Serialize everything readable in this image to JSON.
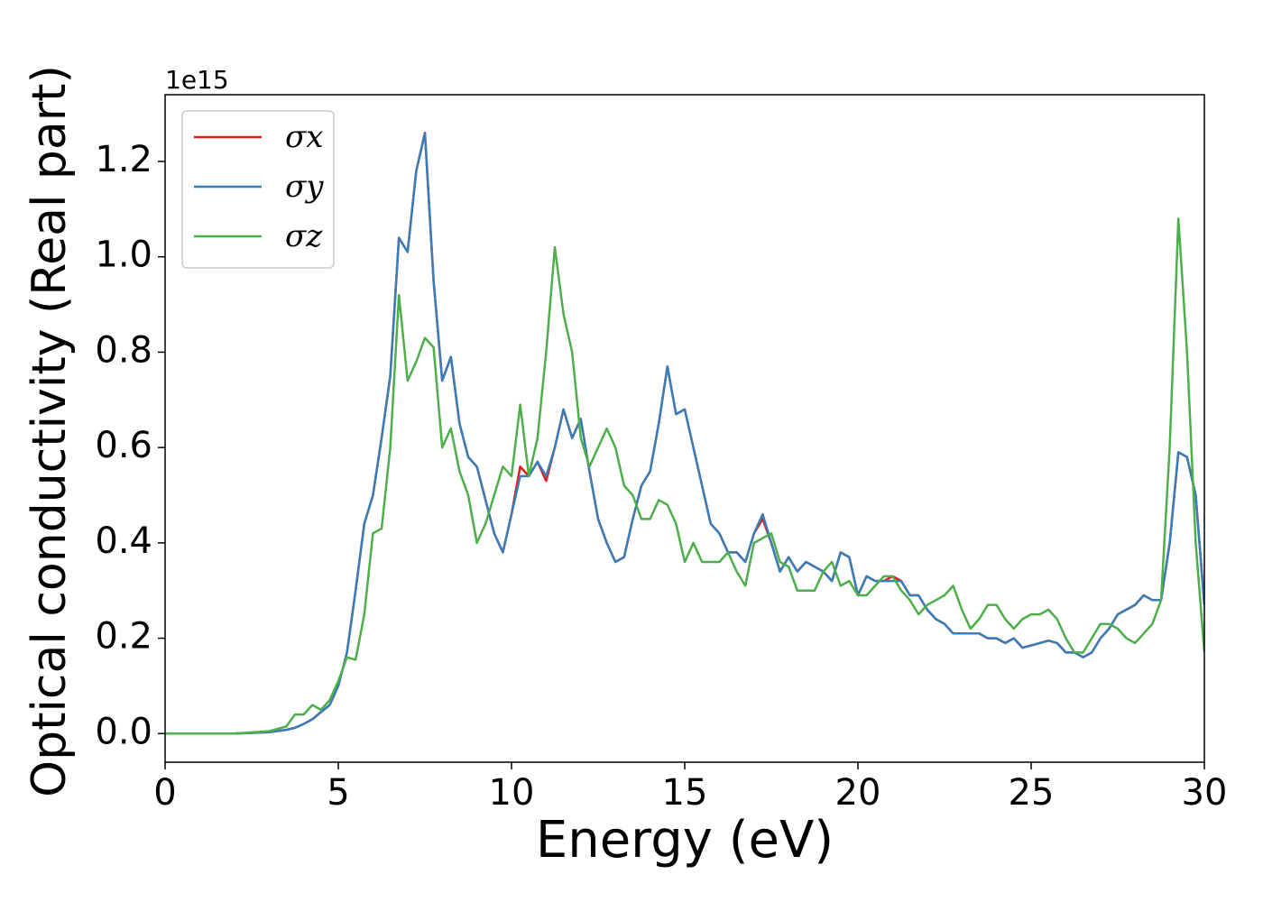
{
  "chart_data": {
    "type": "line",
    "xlabel": "Energy (eV)",
    "ylabel": "Optical conductivity (Real part)",
    "y_multiplier": "1e15",
    "x": [
      0,
      1,
      2,
      3,
      3.5,
      3.75,
      4,
      4.25,
      4.5,
      4.75,
      5,
      5.25,
      5.5,
      5.75,
      6,
      6.25,
      6.5,
      6.75,
      7,
      7.25,
      7.5,
      7.75,
      8,
      8.25,
      8.5,
      8.75,
      9,
      9.25,
      9.5,
      9.75,
      10,
      10.25,
      10.5,
      10.75,
      11,
      11.25,
      11.5,
      11.75,
      12,
      12.25,
      12.5,
      12.75,
      13,
      13.25,
      13.5,
      13.75,
      14,
      14.25,
      14.5,
      14.75,
      15,
      15.25,
      15.5,
      15.75,
      16,
      16.25,
      16.5,
      16.75,
      17,
      17.25,
      17.5,
      17.75,
      18,
      18.25,
      18.5,
      18.75,
      19,
      19.25,
      19.5,
      19.75,
      20,
      20.25,
      20.5,
      20.75,
      21,
      21.25,
      21.5,
      21.75,
      22,
      22.25,
      22.5,
      22.75,
      23,
      23.25,
      23.5,
      23.75,
      24,
      24.25,
      24.5,
      24.75,
      25,
      25.25,
      25.5,
      25.75,
      26,
      26.25,
      26.5,
      26.75,
      27,
      27.25,
      27.5,
      27.75,
      28,
      28.25,
      28.5,
      28.75,
      29,
      29.25,
      29.5,
      29.75,
      30
    ],
    "series": [
      {
        "name": "σx",
        "color": "#e41a1c",
        "values": [
          0,
          0,
          0,
          0.003,
          0.008,
          0.012,
          0.02,
          0.03,
          0.045,
          0.06,
          0.1,
          0.17,
          0.3,
          0.44,
          0.5,
          0.62,
          0.75,
          1.04,
          1.01,
          1.18,
          1.26,
          0.95,
          0.74,
          0.79,
          0.65,
          0.58,
          0.56,
          0.49,
          0.42,
          0.38,
          0.46,
          0.56,
          0.54,
          0.57,
          0.53,
          0.6,
          0.68,
          0.62,
          0.66,
          0.55,
          0.45,
          0.4,
          0.36,
          0.37,
          0.45,
          0.52,
          0.55,
          0.65,
          0.77,
          0.67,
          0.68,
          0.6,
          0.52,
          0.44,
          0.42,
          0.38,
          0.38,
          0.36,
          0.42,
          0.45,
          0.4,
          0.34,
          0.37,
          0.34,
          0.36,
          0.35,
          0.34,
          0.32,
          0.38,
          0.37,
          0.29,
          0.33,
          0.32,
          0.32,
          0.33,
          0.32,
          0.29,
          0.29,
          0.26,
          0.24,
          0.23,
          0.21,
          0.21,
          0.21,
          0.21,
          0.2,
          0.2,
          0.19,
          0.2,
          0.18,
          0.185,
          0.19,
          0.195,
          0.19,
          0.17,
          0.17,
          0.16,
          0.17,
          0.2,
          0.22,
          0.25,
          0.26,
          0.27,
          0.29,
          0.28,
          0.28,
          0.4,
          0.59,
          0.58,
          0.5,
          0.27
        ]
      },
      {
        "name": "σy",
        "color": "#377eb8",
        "values": [
          0,
          0,
          0,
          0.003,
          0.008,
          0.012,
          0.02,
          0.03,
          0.045,
          0.06,
          0.1,
          0.17,
          0.3,
          0.44,
          0.5,
          0.62,
          0.75,
          1.04,
          1.01,
          1.18,
          1.26,
          0.95,
          0.74,
          0.79,
          0.65,
          0.58,
          0.56,
          0.49,
          0.42,
          0.38,
          0.46,
          0.54,
          0.54,
          0.57,
          0.54,
          0.6,
          0.68,
          0.62,
          0.66,
          0.55,
          0.45,
          0.4,
          0.36,
          0.37,
          0.45,
          0.52,
          0.55,
          0.65,
          0.77,
          0.67,
          0.68,
          0.6,
          0.52,
          0.44,
          0.42,
          0.38,
          0.38,
          0.36,
          0.42,
          0.46,
          0.4,
          0.34,
          0.37,
          0.34,
          0.36,
          0.35,
          0.34,
          0.32,
          0.38,
          0.37,
          0.29,
          0.33,
          0.32,
          0.32,
          0.32,
          0.32,
          0.29,
          0.29,
          0.26,
          0.24,
          0.23,
          0.21,
          0.21,
          0.21,
          0.21,
          0.2,
          0.2,
          0.19,
          0.2,
          0.18,
          0.185,
          0.19,
          0.195,
          0.19,
          0.17,
          0.17,
          0.16,
          0.17,
          0.2,
          0.22,
          0.25,
          0.26,
          0.27,
          0.29,
          0.28,
          0.28,
          0.4,
          0.59,
          0.58,
          0.5,
          0.27
        ]
      },
      {
        "name": "σz",
        "color": "#4daf4a",
        "values": [
          0,
          0,
          0,
          0.005,
          0.015,
          0.04,
          0.04,
          0.06,
          0.05,
          0.07,
          0.11,
          0.16,
          0.155,
          0.25,
          0.42,
          0.43,
          0.6,
          0.92,
          0.74,
          0.78,
          0.83,
          0.81,
          0.6,
          0.64,
          0.55,
          0.5,
          0.4,
          0.44,
          0.5,
          0.56,
          0.54,
          0.69,
          0.54,
          0.62,
          0.8,
          1.02,
          0.88,
          0.8,
          0.62,
          0.56,
          0.6,
          0.64,
          0.6,
          0.52,
          0.5,
          0.45,
          0.45,
          0.49,
          0.48,
          0.44,
          0.36,
          0.4,
          0.36,
          0.36,
          0.36,
          0.38,
          0.34,
          0.31,
          0.4,
          0.41,
          0.42,
          0.36,
          0.35,
          0.3,
          0.3,
          0.3,
          0.34,
          0.36,
          0.31,
          0.32,
          0.29,
          0.29,
          0.31,
          0.33,
          0.33,
          0.3,
          0.28,
          0.25,
          0.27,
          0.28,
          0.29,
          0.31,
          0.26,
          0.22,
          0.24,
          0.27,
          0.27,
          0.24,
          0.22,
          0.24,
          0.25,
          0.25,
          0.26,
          0.24,
          0.2,
          0.17,
          0.17,
          0.2,
          0.23,
          0.23,
          0.22,
          0.2,
          0.19,
          0.21,
          0.23,
          0.28,
          0.6,
          1.08,
          0.8,
          0.4,
          0.17
        ]
      }
    ],
    "xlim": [
      0,
      30
    ],
    "xticks": [
      0,
      5,
      10,
      15,
      20,
      25,
      30
    ],
    "ylim": [
      -0.06,
      1.34
    ],
    "yticks": [
      {
        "value": 0,
        "label": "0.0"
      },
      0.2,
      0.4,
      0.6,
      0.8,
      {
        "value": 1,
        "label": "1.0"
      },
      1.2
    ],
    "grid": false,
    "legend": "upper left"
  }
}
